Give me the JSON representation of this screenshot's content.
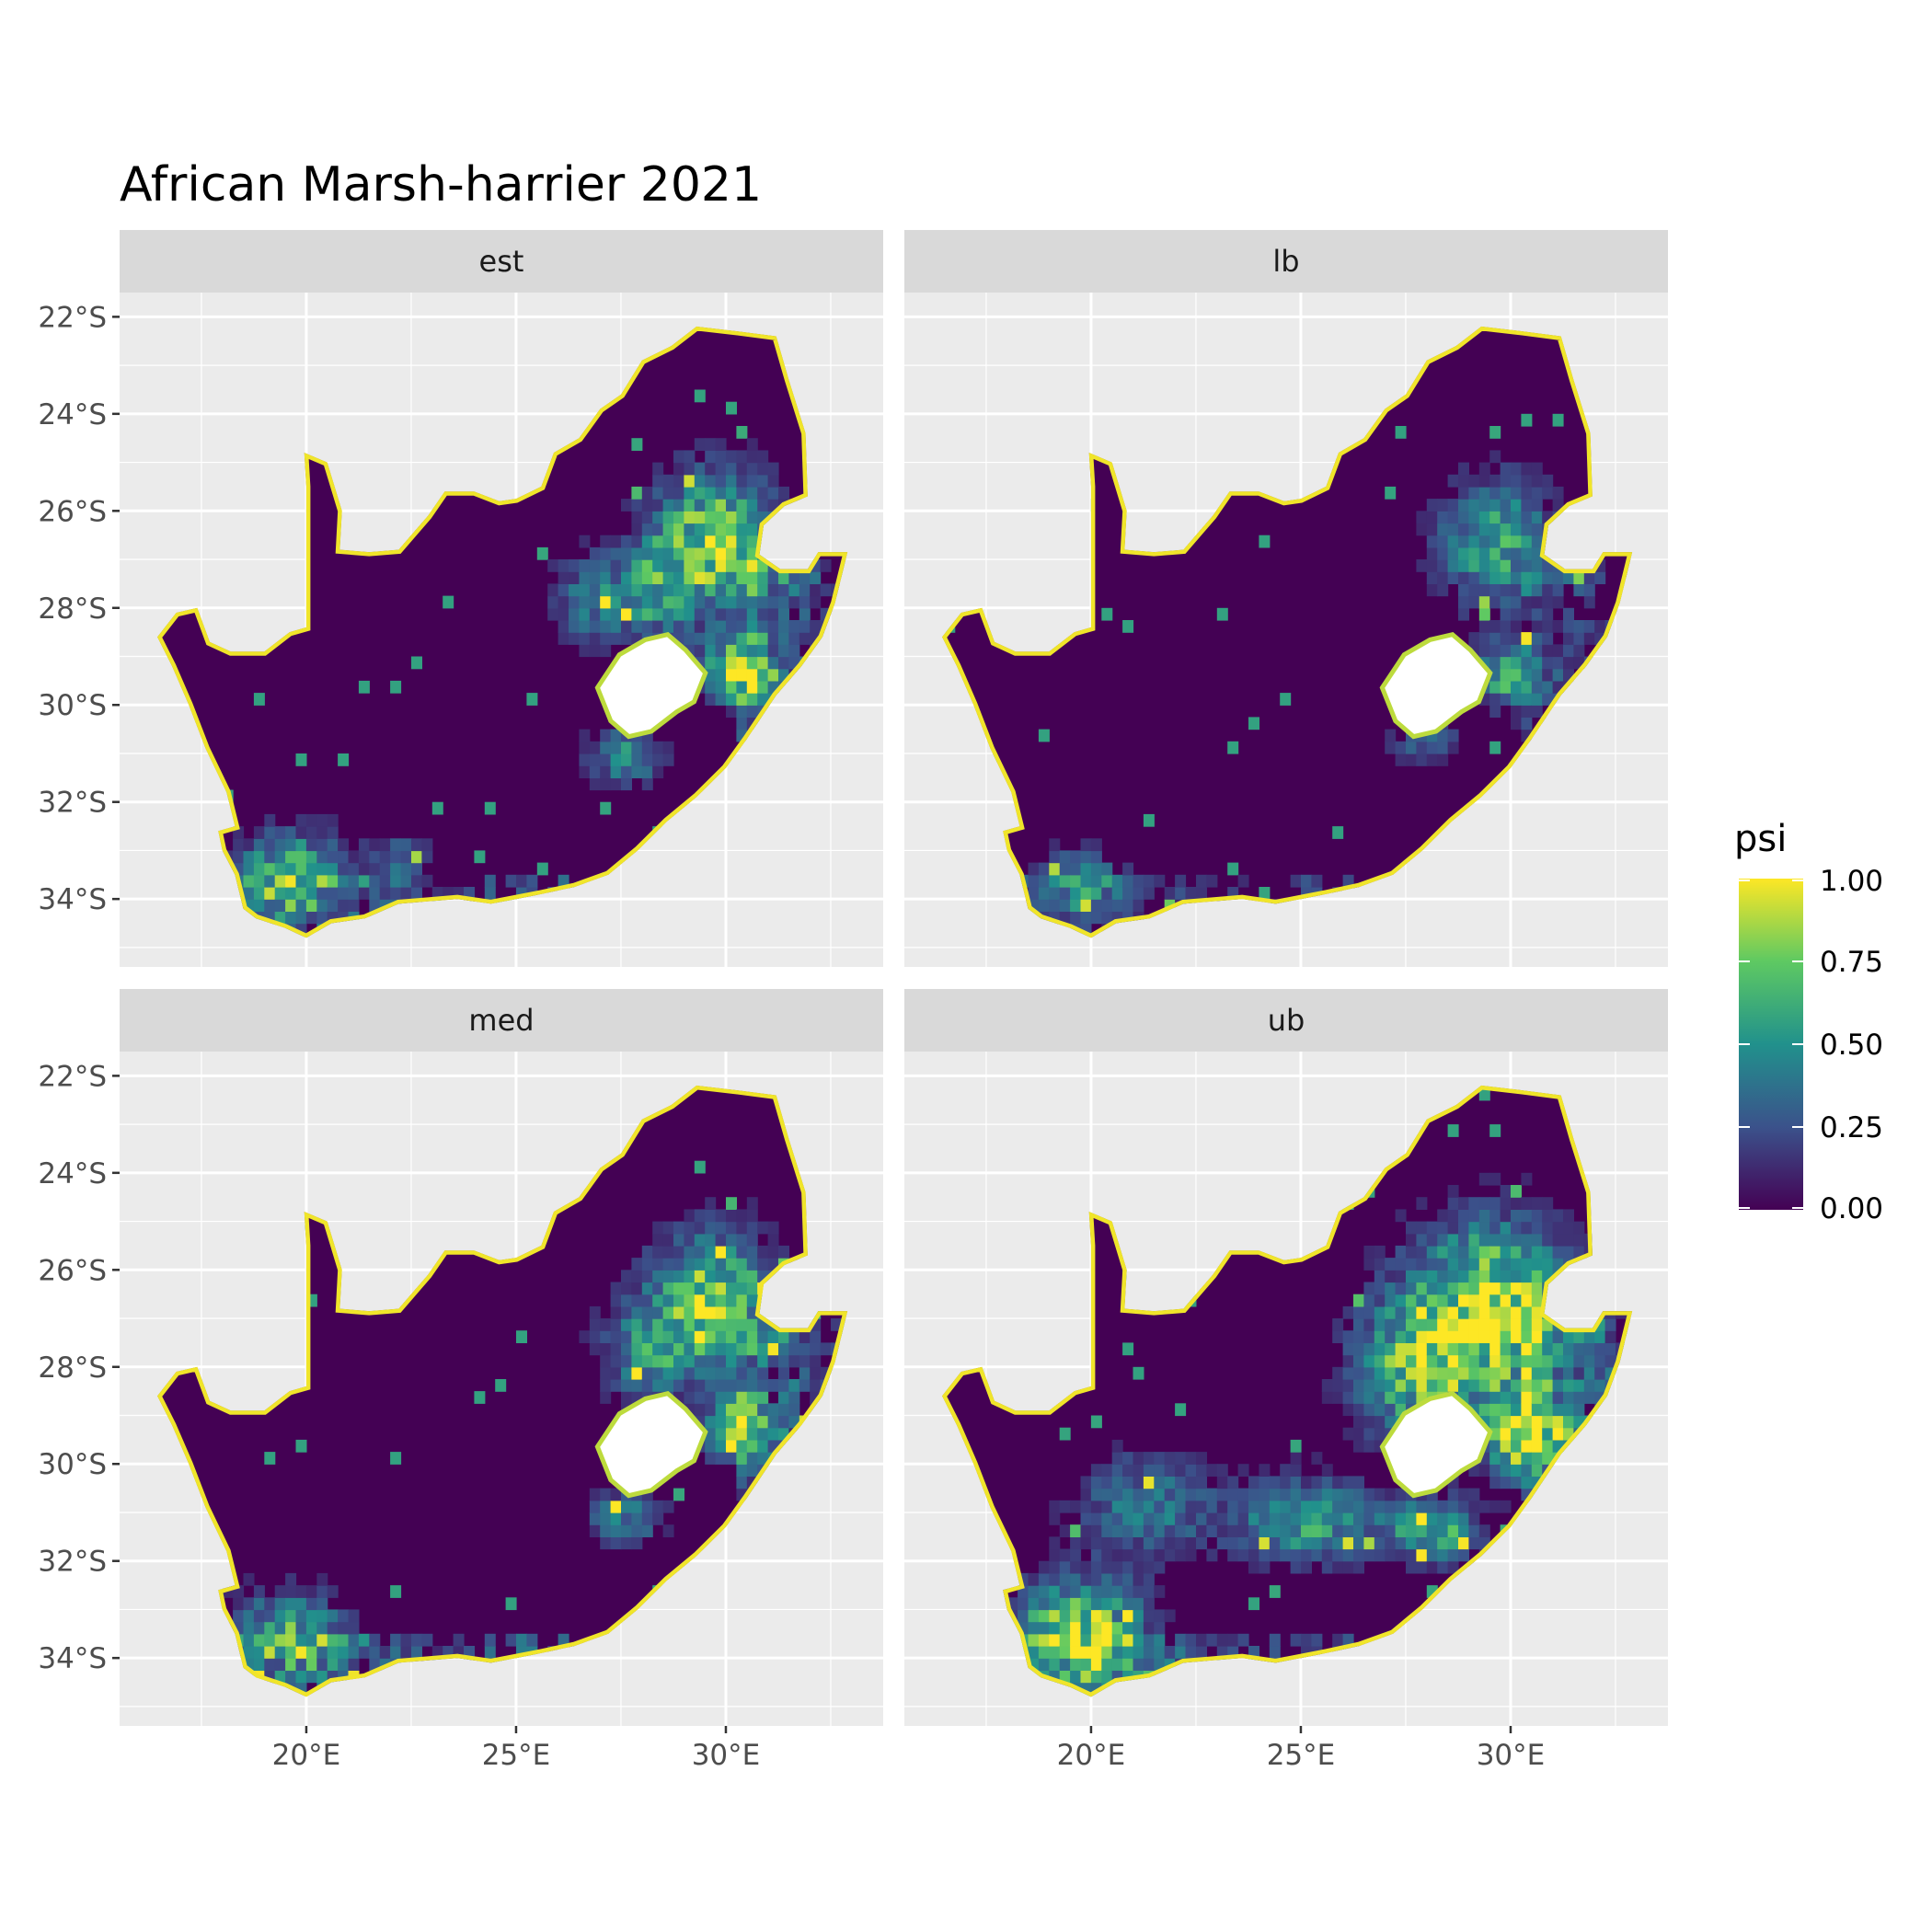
{
  "title": "African Marsh-harrier 2021",
  "panels": [
    {
      "label": "est"
    },
    {
      "label": "lb"
    },
    {
      "label": "med"
    },
    {
      "label": "ub"
    }
  ],
  "axes": {
    "x_ticks": [
      20,
      25,
      30
    ],
    "x_tick_labels": [
      "20°E",
      "25°E",
      "30°E"
    ],
    "y_ticks": [
      -22,
      -24,
      -26,
      -28,
      -30,
      -32,
      -34
    ],
    "y_tick_labels": [
      "22°S",
      "24°S",
      "26°S",
      "28°S",
      "30°S",
      "32°S",
      "34°S"
    ],
    "xlim": [
      15.55,
      33.75
    ],
    "ylim": [
      -35.4,
      -21.5
    ]
  },
  "legend": {
    "title": "psi",
    "breaks": [
      1.0,
      0.75,
      0.5,
      0.25,
      0.0
    ],
    "labels": [
      "1.00",
      "0.75",
      "0.50",
      "0.25",
      "0.00"
    ],
    "colors": [
      "#440154",
      "#3b528b",
      "#21918c",
      "#5ec962",
      "#fde725"
    ]
  },
  "colors": {
    "panel_bg": "#ebebeb",
    "strip_bg": "#d9d9d9",
    "grid": "#ffffff",
    "lesotho_hole": "#ffffff"
  }
}
